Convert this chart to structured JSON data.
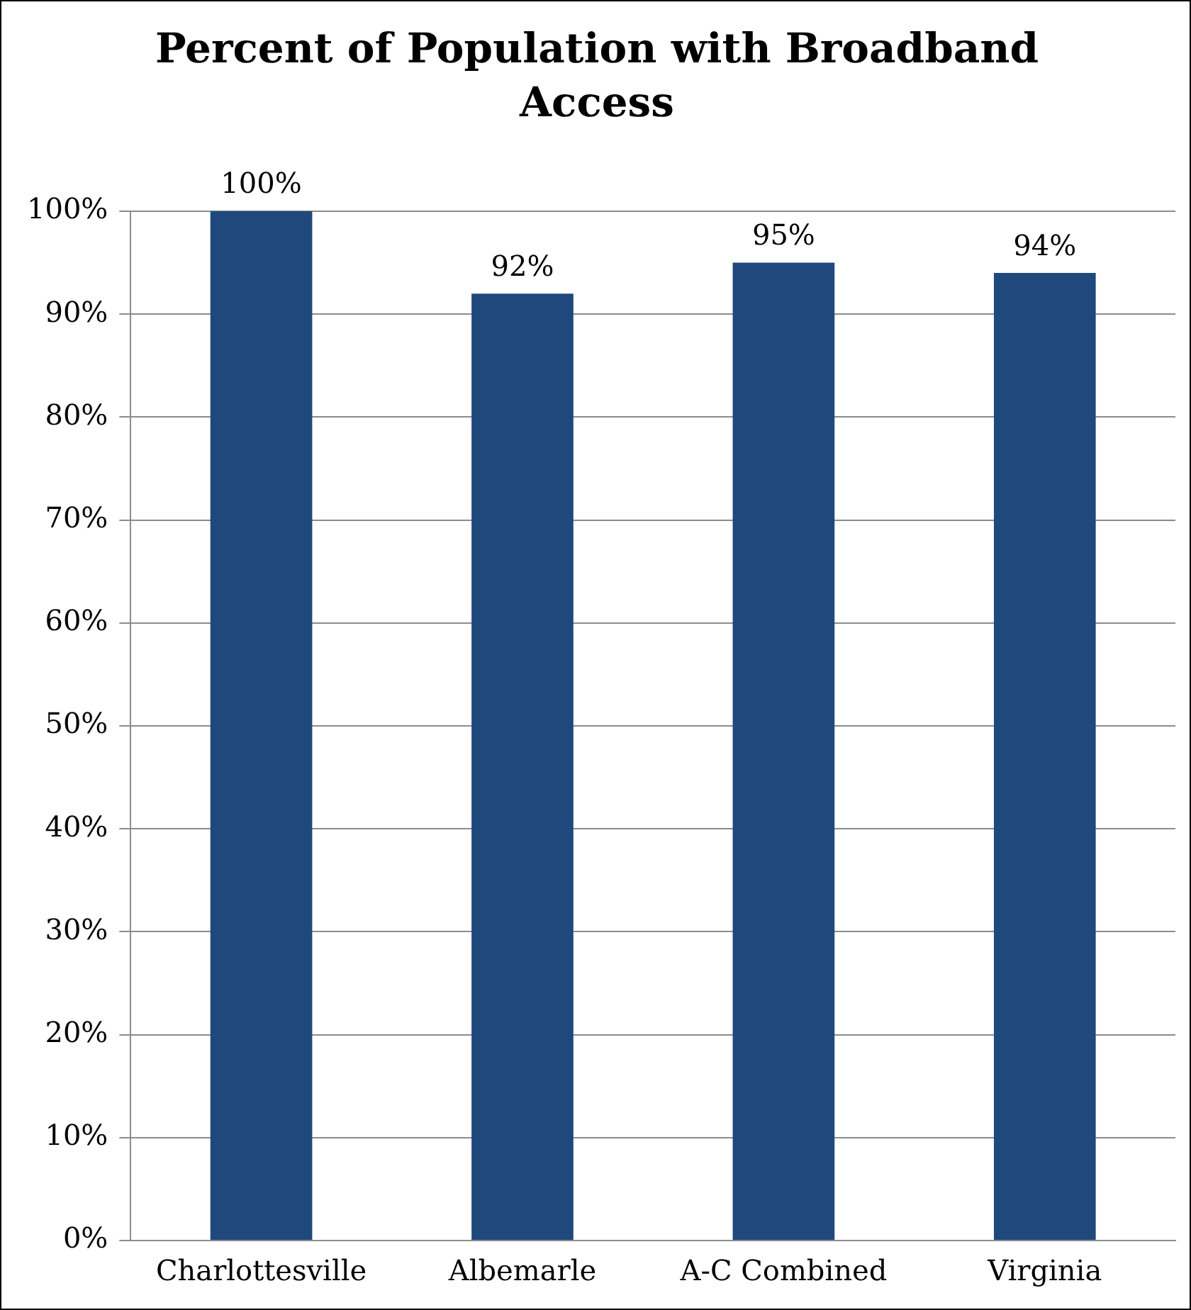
{
  "chart_data": {
    "type": "bar",
    "title": "Percent of Population with Broadband Access",
    "categories": [
      "Charlottesville",
      "Albemarle",
      "A-C Combined",
      "Virginia"
    ],
    "values": [
      100,
      92,
      95,
      94
    ],
    "value_labels": [
      "100%",
      "92%",
      "95%",
      "94%"
    ],
    "color": "#1f497d",
    "ylim": [
      0,
      100
    ],
    "yticks": [
      {
        "value": 0,
        "label": "0%"
      },
      {
        "value": 10,
        "label": "10%"
      },
      {
        "value": 20,
        "label": "20%"
      },
      {
        "value": 30,
        "label": "30%"
      },
      {
        "value": 40,
        "label": "40%"
      },
      {
        "value": 50,
        "label": "50%"
      },
      {
        "value": 60,
        "label": "60%"
      },
      {
        "value": 70,
        "label": "70%"
      },
      {
        "value": 80,
        "label": "80%"
      },
      {
        "value": 90,
        "label": "90%"
      },
      {
        "value": 100,
        "label": "100%"
      }
    ],
    "grid": "y",
    "legend": false
  }
}
